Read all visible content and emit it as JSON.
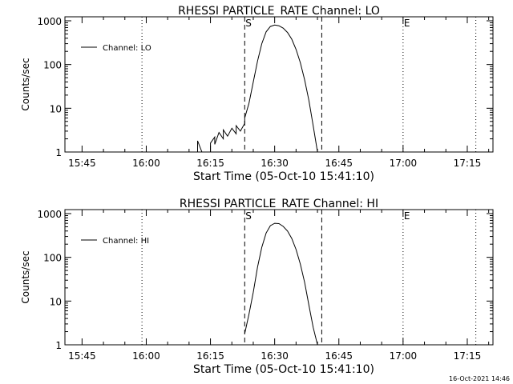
{
  "footer": {
    "timestamp": "16-Oct-2021 14:46"
  },
  "chart_data": [
    {
      "type": "line",
      "title": "RHESSI PARTICLE_RATE Channel: LO",
      "xlabel": "Start Time (05-Oct-10 15:41:10)",
      "ylabel": "Counts/sec",
      "yscale": "log",
      "xlim": [
        "15:41",
        "17:21"
      ],
      "ylim": [
        1,
        1000
      ],
      "xticks": [
        "15:45",
        "16:00",
        "16:15",
        "16:30",
        "16:45",
        "17:00",
        "17:15"
      ],
      "yticks": [
        "1",
        "10",
        "100",
        "1000"
      ],
      "legend": {
        "position": "top-left",
        "entries": [
          "Channel: LO"
        ]
      },
      "markers": [
        {
          "label": "S",
          "time": "16:23",
          "style": "dashed"
        },
        {
          "label": "",
          "time": "16:41",
          "style": "dashed"
        },
        {
          "label": "",
          "time": "15:59",
          "style": "dotted"
        },
        {
          "label": "E",
          "time": "17:00",
          "style": "dotted"
        },
        {
          "label": "",
          "time": "17:17",
          "style": "dotted"
        }
      ],
      "series": [
        {
          "name": "Channel: LO",
          "points": [
            [
              "16:12",
              1
            ],
            [
              "16:12",
              1.8
            ],
            [
              "16:13",
              1
            ],
            [
              "16:15",
              1
            ],
            [
              "16:15",
              1.6
            ],
            [
              "16:16",
              2.2
            ],
            [
              "16:16",
              1.5
            ],
            [
              "16:17",
              2.8
            ],
            [
              "16:18",
              2.0
            ],
            [
              "16:18",
              3.2
            ],
            [
              "16:19",
              2.3
            ],
            [
              "16:20",
              3.5
            ],
            [
              "16:21",
              2.6
            ],
            [
              "16:21",
              4.0
            ],
            [
              "16:22",
              3.0
            ],
            [
              "16:23",
              4.5
            ],
            [
              "16:23",
              6
            ],
            [
              "16:24",
              13
            ],
            [
              "16:25",
              40
            ],
            [
              "16:26",
              120
            ],
            [
              "16:27",
              300
            ],
            [
              "16:28",
              560
            ],
            [
              "16:29",
              740
            ],
            [
              "16:30",
              800
            ],
            [
              "16:31",
              770
            ],
            [
              "16:32",
              680
            ],
            [
              "16:33",
              540
            ],
            [
              "16:34",
              380
            ],
            [
              "16:35",
              220
            ],
            [
              "16:36",
              110
            ],
            [
              "16:37",
              45
            ],
            [
              "16:38",
              15
            ],
            [
              "16:39",
              4
            ],
            [
              "16:40",
              1
            ]
          ]
        }
      ]
    },
    {
      "type": "line",
      "title": "RHESSI PARTICLE_RATE Channel: HI",
      "xlabel": "Start Time (05-Oct-10 15:41:10)",
      "ylabel": "Counts/sec",
      "yscale": "log",
      "xlim": [
        "15:41",
        "17:21"
      ],
      "ylim": [
        1,
        1000
      ],
      "xticks": [
        "15:45",
        "16:00",
        "16:15",
        "16:30",
        "16:45",
        "17:00",
        "17:15"
      ],
      "yticks": [
        "1",
        "10",
        "100",
        "1000"
      ],
      "legend": {
        "position": "top-left",
        "entries": [
          "Channel: HI"
        ]
      },
      "markers": [
        {
          "label": "S",
          "time": "16:23",
          "style": "dashed"
        },
        {
          "label": "",
          "time": "16:41",
          "style": "dashed"
        },
        {
          "label": "",
          "time": "15:59",
          "style": "dotted"
        },
        {
          "label": "E",
          "time": "17:00",
          "style": "dotted"
        },
        {
          "label": "",
          "time": "17:17",
          "style": "dotted"
        }
      ],
      "series": [
        {
          "name": "Channel: HI",
          "points": [
            [
              "16:23",
              1.8
            ],
            [
              "16:24",
              5
            ],
            [
              "16:25",
              16
            ],
            [
              "16:26",
              60
            ],
            [
              "16:27",
              170
            ],
            [
              "16:28",
              360
            ],
            [
              "16:29",
              530
            ],
            [
              "16:30",
              600
            ],
            [
              "16:31",
              590
            ],
            [
              "16:32",
              510
            ],
            [
              "16:33",
              400
            ],
            [
              "16:34",
              270
            ],
            [
              "16:35",
              150
            ],
            [
              "16:36",
              70
            ],
            [
              "16:37",
              27
            ],
            [
              "16:38",
              8
            ],
            [
              "16:39",
              2.5
            ],
            [
              "16:40",
              1
            ]
          ]
        }
      ]
    }
  ]
}
